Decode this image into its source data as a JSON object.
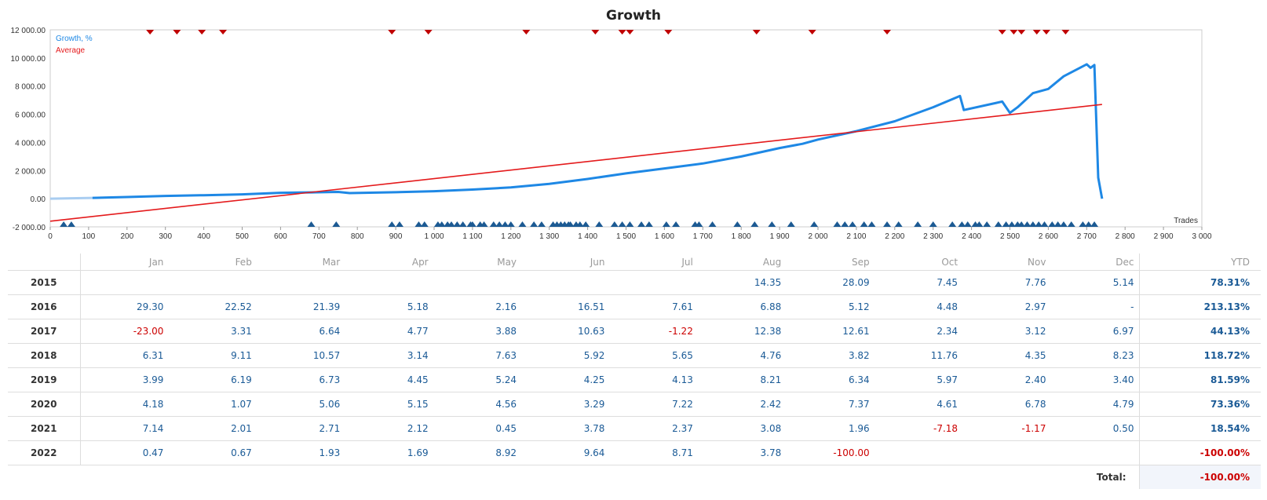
{
  "chart_data": {
    "type": "line",
    "title": "Growth",
    "xlabel": "Trades",
    "ylabel": "",
    "xlim": [
      0,
      3000
    ],
    "ylim": [
      -2000,
      12000
    ],
    "x_ticks": [
      0,
      100,
      200,
      300,
      400,
      500,
      600,
      700,
      800,
      900,
      1000,
      1100,
      1200,
      1300,
      1400,
      1500,
      1600,
      1700,
      1800,
      1900,
      2000,
      2100,
      2200,
      2300,
      2400,
      2500,
      2600,
      2700,
      2800,
      2900,
      3000
    ],
    "x_tick_labels": [
      "0",
      "100",
      "200",
      "300",
      "400",
      "500",
      "600",
      "700",
      "800",
      "900",
      "1 000",
      "1 100",
      "1 200",
      "1 300",
      "1 400",
      "1 500",
      "1 600",
      "1 700",
      "1 800",
      "1 900",
      "2 000",
      "2 100",
      "2 200",
      "2 300",
      "2 400",
      "2 500",
      "2 600",
      "2 700",
      "2 800",
      "2 900",
      "3 000"
    ],
    "y_ticks": [
      -2000,
      0,
      2000,
      4000,
      6000,
      8000,
      10000,
      12000
    ],
    "y_tick_labels": [
      "-2 000.00",
      "0.00",
      "2 000.00",
      "4 000.00",
      "6 000.00",
      "8 000.00",
      "10 000.00",
      "12 000.00"
    ],
    "grid": true,
    "legend": "top-left",
    "series": [
      {
        "name": "Growth, %",
        "color": "#1e88e5",
        "x": [
          0,
          110,
          200,
          300,
          400,
          500,
          600,
          680,
          750,
          780,
          900,
          1000,
          1100,
          1200,
          1300,
          1400,
          1500,
          1600,
          1700,
          1800,
          1900,
          1960,
          2000,
          2100,
          2200,
          2300,
          2370,
          2380,
          2480,
          2500,
          2520,
          2560,
          2600,
          2640,
          2700,
          2710,
          2720,
          2730,
          2740
        ],
        "y": [
          0,
          60,
          120,
          200,
          250,
          310,
          420,
          450,
          480,
          400,
          460,
          530,
          650,
          800,
          1050,
          1400,
          1800,
          2150,
          2500,
          3000,
          3600,
          3900,
          4200,
          4800,
          5500,
          6500,
          7300,
          6300,
          6900,
          6100,
          6500,
          7500,
          7800,
          8700,
          9550,
          9300,
          9500,
          1500,
          0
        ]
      },
      {
        "name": "Average",
        "color": "#e41a1c",
        "x": [
          0,
          2740
        ],
        "y": [
          -1600,
          6700
        ]
      }
    ],
    "markers_top_x": [
      260,
      330,
      395,
      450,
      890,
      985,
      1240,
      1420,
      1490,
      1510,
      1610,
      1840,
      1985,
      2180,
      2480,
      2510,
      2530,
      2570,
      2595,
      2645
    ],
    "markers_bottom_x": [
      35,
      55,
      680,
      745,
      890,
      910,
      960,
      975,
      1010,
      1020,
      1035,
      1045,
      1060,
      1075,
      1095,
      1100,
      1120,
      1130,
      1155,
      1170,
      1185,
      1200,
      1230,
      1260,
      1280,
      1310,
      1320,
      1330,
      1340,
      1350,
      1355,
      1370,
      1380,
      1395,
      1430,
      1470,
      1490,
      1510,
      1540,
      1560,
      1605,
      1630,
      1680,
      1690,
      1725,
      1790,
      1835,
      1880,
      1930,
      1990,
      2050,
      2070,
      2090,
      2120,
      2140,
      2180,
      2210,
      2260,
      2300,
      2350,
      2375,
      2390,
      2410,
      2420,
      2440,
      2470,
      2490,
      2505,
      2520,
      2530,
      2545,
      2560,
      2575,
      2590,
      2610,
      2625,
      2640,
      2660,
      2690,
      2705,
      2720
    ]
  },
  "table": {
    "months": [
      "Jan",
      "Feb",
      "Mar",
      "Apr",
      "May",
      "Jun",
      "Jul",
      "Aug",
      "Sep",
      "Oct",
      "Nov",
      "Dec"
    ],
    "ytd_header": "YTD",
    "rows": [
      {
        "year": "2015",
        "values": [
          "",
          "",
          "",
          "",
          "",
          "",
          "",
          "14.35",
          "28.09",
          "7.45",
          "7.76",
          "5.14"
        ],
        "ytd": "78.31%"
      },
      {
        "year": "2016",
        "values": [
          "29.30",
          "22.52",
          "21.39",
          "5.18",
          "2.16",
          "16.51",
          "7.61",
          "6.88",
          "5.12",
          "4.48",
          "2.97",
          "-"
        ],
        "ytd": "213.13%"
      },
      {
        "year": "2017",
        "values": [
          "-23.00",
          "3.31",
          "6.64",
          "4.77",
          "3.88",
          "10.63",
          "-1.22",
          "12.38",
          "12.61",
          "2.34",
          "3.12",
          "6.97"
        ],
        "ytd": "44.13%"
      },
      {
        "year": "2018",
        "values": [
          "6.31",
          "9.11",
          "10.57",
          "3.14",
          "7.63",
          "5.92",
          "5.65",
          "4.76",
          "3.82",
          "11.76",
          "4.35",
          "8.23"
        ],
        "ytd": "118.72%"
      },
      {
        "year": "2019",
        "values": [
          "3.99",
          "6.19",
          "6.73",
          "4.45",
          "5.24",
          "4.25",
          "4.13",
          "8.21",
          "6.34",
          "5.97",
          "2.40",
          "3.40"
        ],
        "ytd": "81.59%"
      },
      {
        "year": "2020",
        "values": [
          "4.18",
          "1.07",
          "5.06",
          "5.15",
          "4.56",
          "3.29",
          "7.22",
          "2.42",
          "7.37",
          "4.61",
          "6.78",
          "4.79"
        ],
        "ytd": "73.36%"
      },
      {
        "year": "2021",
        "values": [
          "7.14",
          "2.01",
          "2.71",
          "2.12",
          "0.45",
          "3.78",
          "2.37",
          "3.08",
          "1.96",
          "-7.18",
          "-1.17",
          "0.50"
        ],
        "ytd": "18.54%"
      },
      {
        "year": "2022",
        "values": [
          "0.47",
          "0.67",
          "1.93",
          "1.69",
          "8.92",
          "9.64",
          "8.71",
          "3.78",
          "-100.00",
          "",
          "",
          ""
        ],
        "ytd": "-100.00%"
      }
    ],
    "total_label": "Total:",
    "total_value": "-100.00%"
  }
}
